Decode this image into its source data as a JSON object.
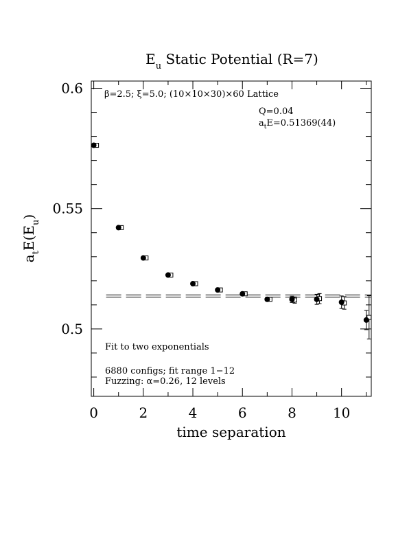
{
  "chart_data": {
    "type": "scatter",
    "title": {
      "main": "E",
      "sub": "u",
      "rest": " Static Potential (R=7)"
    },
    "xlabel": "time separation",
    "ylabel": {
      "a": "a",
      "t": "t",
      "E": "E(E",
      "u": "u",
      "close": ")"
    },
    "xlim": [
      -0.1,
      11.2
    ],
    "ylim": [
      0.472,
      0.603
    ],
    "xticks": [
      0,
      2,
      4,
      6,
      8,
      10
    ],
    "xtick_labels": [
      "0",
      "2",
      "4",
      "6",
      "8",
      "10"
    ],
    "yticks": [
      0.5,
      0.55,
      0.6
    ],
    "ytick_labels": [
      "0.5",
      "0.55",
      "0.6"
    ],
    "grid": false,
    "series": [
      {
        "marker": "filled-circle",
        "points": [
          {
            "x": 0,
            "y": 0.5763
          },
          {
            "x": 1,
            "y": 0.5421
          },
          {
            "x": 2,
            "y": 0.5295
          },
          {
            "x": 3,
            "y": 0.5224
          },
          {
            "x": 4,
            "y": 0.5188
          },
          {
            "x": 5,
            "y": 0.5162
          },
          {
            "x": 6,
            "y": 0.5146
          },
          {
            "x": 7,
            "y": 0.5123,
            "err": 0.0006
          },
          {
            "x": 8,
            "y": 0.5123,
            "err": 0.0013
          },
          {
            "x": 9,
            "y": 0.5123,
            "err": 0.0021
          },
          {
            "x": 10,
            "y": 0.5111,
            "err": 0.0026
          },
          {
            "x": 11,
            "y": 0.5037,
            "err": 0.004
          }
        ]
      },
      {
        "marker": "open-square",
        "points": [
          {
            "x": 0,
            "y": 0.5763
          },
          {
            "x": 1,
            "y": 0.5421
          },
          {
            "x": 2,
            "y": 0.5295
          },
          {
            "x": 3,
            "y": 0.5224
          },
          {
            "x": 4,
            "y": 0.5188
          },
          {
            "x": 5,
            "y": 0.5162
          },
          {
            "x": 6,
            "y": 0.5146
          },
          {
            "x": 7,
            "y": 0.5123,
            "err": 0.0006
          },
          {
            "x": 8,
            "y": 0.512,
            "err": 0.0013
          },
          {
            "x": 9,
            "y": 0.5126,
            "err": 0.0021
          },
          {
            "x": 10,
            "y": 0.5108,
            "err": 0.0026
          },
          {
            "x": 11,
            "y": 0.5048,
            "err": 0.009
          }
        ]
      }
    ],
    "fit": {
      "value": 0.51369,
      "error": 0.00044,
      "x_range": [
        0.5,
        11.2
      ],
      "style": "dashed"
    },
    "annotations": {
      "lattice": "β=2.5; ξ=5.0; (10×10×30)×60 Lattice",
      "q": "Q=0.04",
      "ate_a": "a",
      "ate_t": "t",
      "ate_rest": "E=0.51369(44)",
      "fit_note": "Fit to two exponentials",
      "configs": "6880 configs; fit range 1−12",
      "fuzzing": "Fuzzing: α=0.26, 12 levels"
    }
  }
}
